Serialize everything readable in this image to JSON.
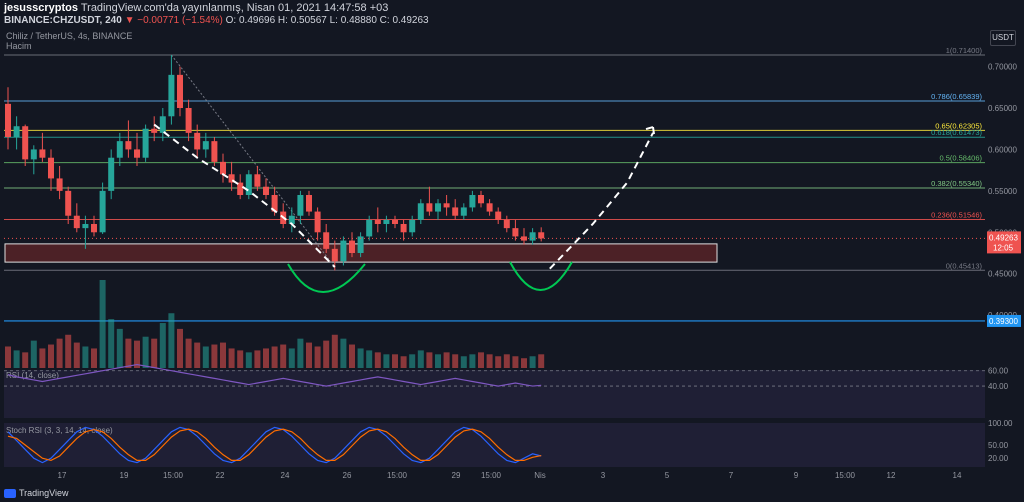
{
  "header": {
    "author": "jesusscryptos",
    "published": "TradingView.com'da yayınlanmış, Nisan 01, 2021 14:47:58 +03",
    "symbol": "BINANCE:CHZUSDT, 240",
    "change": "▼ −0.00771 (−1.54%)",
    "ohlc": "O: 0.49696 H: 0.50567 L: 0.48880 C: 0.49263"
  },
  "pane_title": "Chiliz / TetherUS, 4s, BINANCE",
  "volume_label": "Hacim",
  "currency": "USDT",
  "brand": "TradingView",
  "colors": {
    "bull": "#26a69a",
    "bear": "#ef5350",
    "bg": "#131722",
    "rsi": "#7e57c2",
    "box": "#7b2a2a"
  },
  "chart_data": {
    "type": "candlestick",
    "symbol": "CHZUSDT",
    "interval": "240",
    "ylim": [
      0.37,
      0.72
    ],
    "last_price": "0.49263",
    "countdown": "12:05",
    "price_ticks": [
      "0.70000",
      "0.65000",
      "0.60000",
      "0.55000",
      "0.50000",
      "0.45000",
      "0.40000"
    ],
    "x_ticks": [
      "17",
      "19",
      "15:00",
      "22",
      "24",
      "26",
      "15:00",
      "29",
      "15:00",
      "Nis",
      "3",
      "5",
      "7",
      "9",
      "15:00",
      "12",
      "14"
    ],
    "fib_levels": [
      {
        "label": "1(0.71400)",
        "value": 0.714,
        "color": "#787b86"
      },
      {
        "label": "0.786(0.65839)",
        "value": 0.65839,
        "color": "#64b5f6"
      },
      {
        "label": "0.65(0.62305)",
        "value": 0.62305,
        "color": "#ffeb3b"
      },
      {
        "label": "0.618(0.61473)",
        "value": 0.61473,
        "color": "#26a69a"
      },
      {
        "label": "0.5(0.58406)",
        "value": 0.58406,
        "color": "#66bb6a"
      },
      {
        "label": "0.382(0.55340)",
        "value": 0.5534,
        "color": "#81c784"
      },
      {
        "label": "0.236(0.51546)",
        "value": 0.51546,
        "color": "#ef5350"
      },
      {
        "label": "0(0.45413)",
        "value": 0.45413,
        "color": "#787b86"
      }
    ],
    "horizontal_line": {
      "label": "0.39300",
      "value": 0.393,
      "color": "#2196f3"
    },
    "support_box": [
      0.464,
      0.486
    ],
    "candles": [
      [
        0.655,
        0.675,
        0.6,
        0.615
      ],
      [
        0.615,
        0.64,
        0.6,
        0.628
      ],
      [
        0.628,
        0.63,
        0.58,
        0.588
      ],
      [
        0.588,
        0.605,
        0.57,
        0.6
      ],
      [
        0.6,
        0.62,
        0.585,
        0.59
      ],
      [
        0.59,
        0.6,
        0.55,
        0.565
      ],
      [
        0.565,
        0.58,
        0.54,
        0.55
      ],
      [
        0.55,
        0.555,
        0.51,
        0.52
      ],
      [
        0.52,
        0.535,
        0.5,
        0.505
      ],
      [
        0.505,
        0.52,
        0.48,
        0.51
      ],
      [
        0.51,
        0.52,
        0.495,
        0.5
      ],
      [
        0.5,
        0.56,
        0.498,
        0.55
      ],
      [
        0.55,
        0.6,
        0.54,
        0.59
      ],
      [
        0.59,
        0.62,
        0.58,
        0.61
      ],
      [
        0.61,
        0.635,
        0.59,
        0.6
      ],
      [
        0.6,
        0.62,
        0.58,
        0.59
      ],
      [
        0.59,
        0.63,
        0.585,
        0.625
      ],
      [
        0.625,
        0.64,
        0.61,
        0.62
      ],
      [
        0.62,
        0.65,
        0.61,
        0.64
      ],
      [
        0.64,
        0.714,
        0.63,
        0.69
      ],
      [
        0.69,
        0.7,
        0.64,
        0.65
      ],
      [
        0.65,
        0.66,
        0.61,
        0.62
      ],
      [
        0.62,
        0.63,
        0.59,
        0.6
      ],
      [
        0.6,
        0.62,
        0.59,
        0.61
      ],
      [
        0.61,
        0.615,
        0.58,
        0.585
      ],
      [
        0.585,
        0.595,
        0.56,
        0.57
      ],
      [
        0.57,
        0.585,
        0.55,
        0.56
      ],
      [
        0.56,
        0.57,
        0.54,
        0.545
      ],
      [
        0.545,
        0.575,
        0.54,
        0.57
      ],
      [
        0.57,
        0.58,
        0.55,
        0.555
      ],
      [
        0.555,
        0.565,
        0.54,
        0.545
      ],
      [
        0.545,
        0.555,
        0.52,
        0.525
      ],
      [
        0.525,
        0.535,
        0.505,
        0.51
      ],
      [
        0.51,
        0.53,
        0.5,
        0.52
      ],
      [
        0.52,
        0.55,
        0.51,
        0.545
      ],
      [
        0.545,
        0.55,
        0.52,
        0.525
      ],
      [
        0.525,
        0.53,
        0.49,
        0.5
      ],
      [
        0.5,
        0.51,
        0.475,
        0.48
      ],
      [
        0.48,
        0.49,
        0.454,
        0.465
      ],
      [
        0.465,
        0.495,
        0.46,
        0.49
      ],
      [
        0.49,
        0.5,
        0.47,
        0.475
      ],
      [
        0.475,
        0.5,
        0.47,
        0.495
      ],
      [
        0.495,
        0.52,
        0.49,
        0.515
      ],
      [
        0.515,
        0.53,
        0.5,
        0.51
      ],
      [
        0.51,
        0.52,
        0.5,
        0.515
      ],
      [
        0.515,
        0.52,
        0.505,
        0.51
      ],
      [
        0.51,
        0.515,
        0.49,
        0.5
      ],
      [
        0.5,
        0.52,
        0.495,
        0.515
      ],
      [
        0.515,
        0.54,
        0.51,
        0.535
      ],
      [
        0.535,
        0.555,
        0.52,
        0.525
      ],
      [
        0.525,
        0.54,
        0.515,
        0.535
      ],
      [
        0.535,
        0.545,
        0.52,
        0.53
      ],
      [
        0.53,
        0.54,
        0.515,
        0.52
      ],
      [
        0.52,
        0.535,
        0.515,
        0.53
      ],
      [
        0.53,
        0.55,
        0.525,
        0.545
      ],
      [
        0.545,
        0.55,
        0.53,
        0.535
      ],
      [
        0.535,
        0.54,
        0.52,
        0.525
      ],
      [
        0.525,
        0.53,
        0.51,
        0.515
      ],
      [
        0.515,
        0.52,
        0.5,
        0.505
      ],
      [
        0.505,
        0.515,
        0.49,
        0.495
      ],
      [
        0.495,
        0.505,
        0.485,
        0.49
      ],
      [
        0.49,
        0.505,
        0.485,
        0.5
      ],
      [
        0.5,
        0.506,
        0.489,
        0.4926
      ]
    ],
    "volume": [
      22,
      18,
      16,
      28,
      20,
      24,
      30,
      34,
      26,
      22,
      20,
      90,
      50,
      40,
      30,
      28,
      32,
      30,
      46,
      56,
      40,
      30,
      26,
      22,
      24,
      26,
      20,
      18,
      16,
      18,
      20,
      22,
      24,
      20,
      30,
      26,
      22,
      28,
      34,
      30,
      24,
      20,
      18,
      16,
      14,
      14,
      12,
      14,
      18,
      16,
      14,
      16,
      14,
      12,
      14,
      16,
      14,
      12,
      14,
      12,
      10,
      12,
      14
    ],
    "rsi": {
      "label": "RSI (14, close)",
      "ticks": [
        "60.00",
        "40.00"
      ],
      "values": [
        55,
        52,
        50,
        48,
        46,
        48,
        50,
        52,
        54,
        56,
        58,
        60,
        62,
        64,
        66,
        68,
        66,
        64,
        62,
        60,
        58,
        56,
        54,
        52,
        50,
        48,
        46,
        44,
        42,
        44,
        46,
        48,
        50,
        48,
        46,
        44,
        42,
        40,
        42,
        44,
        46,
        48,
        50,
        52,
        50,
        48,
        46,
        44,
        42,
        44,
        46,
        48,
        50,
        48,
        46,
        44,
        42,
        40,
        42,
        44,
        42,
        40,
        41
      ]
    },
    "stoch_rsi": {
      "label": "Stoch RSI (3, 3, 14, 14, close)",
      "ticks": [
        "100.00",
        "50.00",
        "20.00"
      ],
      "k": [
        80,
        60,
        40,
        20,
        10,
        20,
        40,
        60,
        80,
        90,
        85,
        70,
        50,
        30,
        15,
        10,
        20,
        40,
        60,
        80,
        90,
        85,
        70,
        50,
        30,
        15,
        10,
        20,
        40,
        60,
        80,
        90,
        85,
        70,
        50,
        30,
        15,
        10,
        20,
        40,
        60,
        80,
        90,
        85,
        70,
        50,
        30,
        15,
        10,
        20,
        40,
        60,
        80,
        90,
        85,
        70,
        50,
        30,
        15,
        10,
        20,
        30,
        25
      ],
      "d": [
        70,
        65,
        50,
        35,
        20,
        15,
        25,
        45,
        65,
        80,
        85,
        80,
        65,
        45,
        28,
        15,
        15,
        28,
        48,
        68,
        82,
        86,
        80,
        65,
        45,
        28,
        15,
        15,
        28,
        48,
        68,
        82,
        86,
        80,
        65,
        45,
        28,
        15,
        15,
        28,
        48,
        68,
        82,
        86,
        80,
        65,
        45,
        28,
        15,
        15,
        28,
        48,
        68,
        82,
        86,
        80,
        65,
        45,
        28,
        15,
        15,
        22,
        26
      ]
    }
  }
}
